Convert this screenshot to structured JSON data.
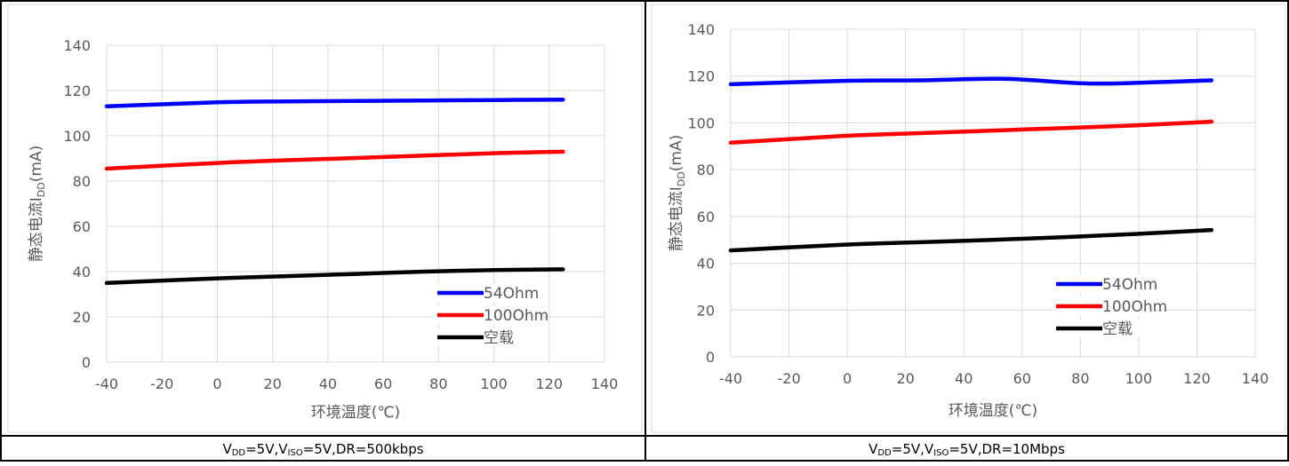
{
  "captions": [
    {
      "parts": [
        [
          "V",
          ""
        ],
        [
          "DD",
          "sub"
        ],
        [
          "=5V,V",
          ""
        ],
        [
          "ISO",
          "sub"
        ],
        [
          "=5V,DR=500kbps",
          ""
        ]
      ]
    },
    {
      "parts": [
        [
          "V",
          ""
        ],
        [
          "DD",
          "sub"
        ],
        [
          "=5V,V",
          ""
        ],
        [
          "ISO",
          "sub"
        ],
        [
          "=5V,DR=10Mbps",
          ""
        ]
      ]
    }
  ],
  "chart_data": [
    {
      "type": "line",
      "xlabel": "环境温度(℃)",
      "ylabel": "静态电流I_DD(mA)",
      "ylabel_parts": [
        [
          "静态电流I",
          ""
        ],
        [
          "DD",
          "sub"
        ],
        [
          "(mA)",
          ""
        ]
      ],
      "xlim": [
        -40,
        140
      ],
      "ylim": [
        0,
        140
      ],
      "xticks": [
        -40,
        -20,
        0,
        20,
        40,
        60,
        80,
        100,
        120,
        140
      ],
      "yticks": [
        0,
        20,
        40,
        60,
        80,
        100,
        120,
        140
      ],
      "grid": true,
      "legend_position": "bottom-right",
      "x": [
        -40,
        0,
        25,
        50,
        75,
        100,
        125
      ],
      "series": [
        {
          "name": "54Ohm",
          "color": "#0000ff",
          "values": [
            113,
            114.8,
            115.2,
            115.4,
            115.6,
            115.8,
            116
          ]
        },
        {
          "name": "100Ohm",
          "color": "#ff0000",
          "values": [
            85.5,
            88,
            89.2,
            90.2,
            91.3,
            92.3,
            93
          ]
        },
        {
          "name": "空载",
          "color": "#000000",
          "values": [
            35,
            37,
            38,
            39,
            40,
            40.7,
            41
          ]
        }
      ]
    },
    {
      "type": "line",
      "xlabel": "环境温度(℃)",
      "ylabel": "静态电流I_DD(mA)",
      "ylabel_parts": [
        [
          "静态电流I",
          ""
        ],
        [
          "DD",
          "sub"
        ],
        [
          "(mA)",
          ""
        ]
      ],
      "xlim": [
        -40,
        140
      ],
      "ylim": [
        0,
        140
      ],
      "xticks": [
        -40,
        -20,
        0,
        20,
        40,
        60,
        80,
        100,
        120,
        140
      ],
      "yticks": [
        0,
        20,
        40,
        60,
        80,
        100,
        120,
        140
      ],
      "grid": true,
      "legend_position": "bottom-right",
      "x": [
        -40,
        0,
        25,
        55,
        85,
        125
      ],
      "series": [
        {
          "name": "54Ohm",
          "color": "#0000ff",
          "values": [
            116.5,
            118,
            118.2,
            118.8,
            116.8,
            118.2
          ]
        },
        {
          "name": "100Ohm",
          "color": "#ff0000",
          "x": [
            -40,
            0,
            25,
            50,
            75,
            100,
            125
          ],
          "values": [
            91.5,
            94.5,
            95.6,
            96.7,
            97.8,
            99,
            100.5
          ]
        },
        {
          "name": "空载",
          "color": "#000000",
          "x": [
            -40,
            0,
            25,
            50,
            75,
            100,
            125
          ],
          "values": [
            45.5,
            48,
            49,
            50,
            51.2,
            52.6,
            54.2
          ]
        }
      ]
    }
  ]
}
